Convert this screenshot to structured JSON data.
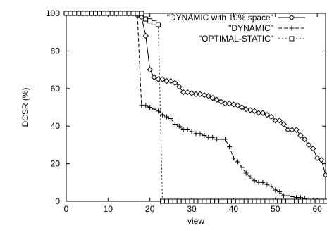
{
  "chart_data": {
    "type": "line",
    "xlabel": "view",
    "ylabel": "DCSR (%)",
    "xlim": [
      0,
      62
    ],
    "ylim": [
      0,
      100
    ],
    "xticks": [
      0,
      10,
      20,
      30,
      40,
      50,
      60
    ],
    "yticks": [
      0,
      20,
      40,
      60,
      80,
      100
    ],
    "legend_position": "top-right",
    "series": [
      {
        "name": "\"DYNAMIC with 10% space\"",
        "marker": "diamond",
        "line": "solid",
        "x": [
          0,
          1,
          2,
          3,
          4,
          5,
          6,
          7,
          8,
          9,
          10,
          11,
          12,
          13,
          14,
          15,
          16,
          17,
          18,
          19,
          20,
          21,
          22,
          23,
          24,
          25,
          26,
          27,
          28,
          29,
          30,
          31,
          32,
          33,
          34,
          35,
          36,
          37,
          38,
          39,
          40,
          41,
          42,
          43,
          44,
          45,
          46,
          47,
          48,
          49,
          50,
          51,
          52,
          53,
          54,
          55,
          56,
          57,
          58,
          59,
          60,
          61,
          62
        ],
        "y": [
          100,
          100,
          100,
          100,
          100,
          100,
          100,
          100,
          100,
          100,
          100,
          100,
          100,
          100,
          100,
          100,
          100,
          99,
          98,
          88,
          70,
          66,
          65,
          65,
          64,
          64,
          63,
          61,
          58,
          58,
          57.5,
          57,
          57,
          56.5,
          56,
          55,
          54,
          53,
          52,
          52,
          51.5,
          51,
          50,
          49,
          48.5,
          48,
          47,
          47,
          46,
          45,
          43,
          43,
          41,
          38,
          38,
          38,
          35,
          33,
          30,
          28,
          23,
          22,
          14
        ]
      },
      {
        "name": "\"DYNAMIC\"",
        "marker": "plus",
        "line": "dashed",
        "x": [
          0,
          1,
          2,
          3,
          4,
          5,
          6,
          7,
          8,
          9,
          10,
          11,
          12,
          13,
          14,
          15,
          16,
          17,
          18,
          19,
          20,
          21,
          22,
          23,
          24,
          25,
          26,
          27,
          28,
          29,
          30,
          31,
          32,
          33,
          34,
          35,
          36,
          37,
          38,
          39,
          40,
          41,
          42,
          43,
          44,
          45,
          46,
          47,
          48,
          49,
          50,
          51,
          52,
          53,
          54,
          55,
          56,
          57,
          58,
          59,
          60,
          61,
          62
        ],
        "y": [
          100,
          100,
          100,
          100,
          100,
          100,
          100,
          100,
          100,
          100,
          100,
          100,
          100,
          100,
          100,
          100,
          100,
          100,
          51,
          51,
          50,
          49,
          48,
          46,
          45,
          44,
          41,
          40,
          38,
          38,
          37,
          36,
          36,
          35,
          34,
          34,
          33,
          33,
          33,
          29,
          23,
          21,
          18,
          15,
          13,
          11,
          10,
          10,
          9,
          8,
          6,
          5,
          3,
          3,
          2.5,
          2,
          2,
          1.5,
          1,
          0.5,
          0.3,
          0.2,
          0
        ]
      },
      {
        "name": "\"OPTIMAL-STATIC\"",
        "marker": "square",
        "line": "dotted",
        "x": [
          0,
          1,
          2,
          3,
          4,
          5,
          6,
          7,
          8,
          9,
          10,
          11,
          12,
          13,
          14,
          15,
          16,
          17,
          18,
          19,
          20,
          21,
          22,
          23,
          24,
          25,
          26,
          27,
          28,
          29,
          30,
          31,
          32,
          33,
          34,
          35,
          36,
          37,
          38,
          39,
          40,
          41,
          42,
          43,
          44,
          45,
          46,
          47,
          48,
          49,
          50,
          51,
          52,
          53,
          54,
          55,
          56,
          57,
          58,
          59,
          60,
          61,
          62
        ],
        "y": [
          100,
          100,
          100,
          100,
          100,
          100,
          100,
          100,
          100,
          100,
          100,
          100,
          100,
          100,
          100,
          100,
          100,
          100,
          100,
          97,
          96,
          95,
          94,
          0,
          0,
          0,
          0,
          0,
          0,
          0,
          0,
          0,
          0,
          0,
          0,
          0,
          0,
          0,
          0,
          0,
          0,
          0,
          0,
          0,
          0,
          0,
          0,
          0,
          0,
          0,
          0,
          0,
          0,
          0,
          0,
          0,
          0,
          0,
          0,
          0,
          0,
          0,
          0
        ]
      }
    ]
  }
}
